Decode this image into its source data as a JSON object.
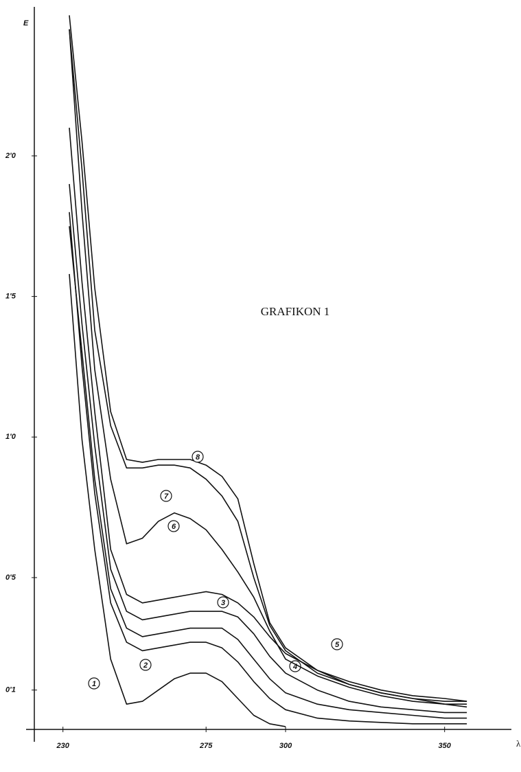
{
  "chart_data": {
    "type": "line",
    "title": "GRAFIKON 1",
    "y_label": "E",
    "x_label": "λ",
    "x": [
      232,
      236,
      240,
      245,
      250,
      255,
      260,
      265,
      270,
      275,
      280,
      285,
      290,
      295,
      300,
      310,
      320,
      330,
      340,
      350,
      357
    ],
    "series": [
      {
        "name": "1",
        "color": "#111111",
        "values": [
          1.58,
          0.99,
          0.6,
          0.21,
          0.05,
          0.06,
          0.1,
          0.14,
          0.16,
          0.16,
          0.13,
          0.07,
          0.01,
          -0.02,
          -0.03,
          null,
          null,
          null,
          null,
          null,
          null
        ]
      },
      {
        "name": "2",
        "color": "#111111",
        "values": [
          1.8,
          1.25,
          0.8,
          0.41,
          0.27,
          0.24,
          0.25,
          0.26,
          0.27,
          0.27,
          0.25,
          0.2,
          0.13,
          0.07,
          0.03,
          0.0,
          -0.01,
          -0.015,
          -0.02,
          -0.02,
          -0.02
        ]
      },
      {
        "name": "3",
        "color": "#111111",
        "values": [
          1.75,
          1.3,
          0.85,
          0.46,
          0.32,
          0.29,
          0.3,
          0.31,
          0.32,
          0.32,
          0.32,
          0.28,
          0.21,
          0.14,
          0.09,
          0.05,
          0.03,
          0.02,
          0.01,
          0.0,
          0.0
        ]
      },
      {
        "name": "4",
        "color": "#111111",
        "values": [
          1.9,
          1.4,
          0.97,
          0.53,
          0.38,
          0.35,
          0.36,
          0.37,
          0.38,
          0.38,
          0.38,
          0.36,
          0.3,
          0.22,
          0.16,
          0.1,
          0.06,
          0.04,
          0.03,
          0.02,
          0.02
        ]
      },
      {
        "name": "5",
        "color": "#111111",
        "values": [
          2.1,
          1.55,
          1.09,
          0.6,
          0.44,
          0.41,
          0.42,
          0.43,
          0.44,
          0.45,
          0.44,
          0.41,
          0.36,
          0.29,
          0.23,
          0.17,
          0.12,
          0.09,
          0.07,
          0.05,
          0.04
        ]
      },
      {
        "name": "6",
        "color": "#111111",
        "values": [
          2.45,
          1.8,
          1.24,
          0.85,
          0.62,
          0.64,
          0.7,
          0.73,
          0.71,
          0.67,
          0.6,
          0.52,
          0.43,
          0.31,
          0.21,
          0.15,
          0.11,
          0.08,
          0.06,
          0.05,
          0.05
        ]
      },
      {
        "name": "7",
        "color": "#111111",
        "values": [
          2.45,
          1.95,
          1.38,
          1.04,
          0.89,
          0.89,
          0.9,
          0.9,
          0.89,
          0.85,
          0.79,
          0.7,
          0.5,
          0.33,
          0.24,
          0.16,
          0.12,
          0.09,
          0.07,
          0.06,
          0.06
        ]
      },
      {
        "name": "8",
        "color": "#111111",
        "values": [
          2.5,
          2.05,
          1.53,
          1.09,
          0.92,
          0.91,
          0.92,
          0.92,
          0.92,
          0.9,
          0.86,
          0.78,
          0.55,
          0.34,
          0.25,
          0.17,
          0.13,
          0.1,
          0.08,
          0.07,
          0.06
        ]
      }
    ],
    "xlim": [
      221,
      371
    ],
    "xticks": [
      230,
      275,
      300,
      350
    ],
    "ylim": [
      -0.04,
      2.53
    ],
    "yticks": [
      {
        "value": 0.1,
        "label": "0'1"
      },
      {
        "value": 0.5,
        "label": "0'5"
      },
      {
        "value": 1.0,
        "label": "1'0"
      },
      {
        "value": 1.5,
        "label": "1'5"
      },
      {
        "value": 2.0,
        "label": "2'0"
      }
    ],
    "grid": false
  }
}
